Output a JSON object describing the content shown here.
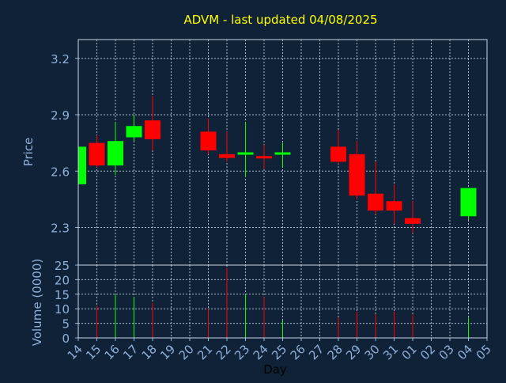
{
  "chart_data": {
    "type": "candlestick",
    "title": "ADVM - last updated 04/08/2025",
    "ylabel": "Price",
    "volume_ylabel": "Volume (0000)",
    "xlabel": "Day",
    "ylim": [
      2.1,
      3.3
    ],
    "volume_ylim": [
      0,
      25
    ],
    "yticks": [
      "2.3",
      "2.6",
      "2.9",
      "3.2"
    ],
    "volume_yticks": [
      "0",
      "5",
      "10",
      "15",
      "20",
      "25"
    ],
    "grid": true,
    "x_labels": [
      "14",
      "15",
      "16",
      "17",
      "18",
      "19",
      "20",
      "21",
      "22",
      "23",
      "24",
      "25",
      "26",
      "27",
      "28",
      "29",
      "30",
      "31",
      "01",
      "02",
      "03",
      "04",
      "05"
    ],
    "colors": {
      "up": "#00ff00",
      "down": "#ff0000",
      "background": "#0f2238",
      "text": "#90b0d8",
      "title": "#ffff00",
      "grid": "#c8d4e4"
    },
    "candles": [
      {
        "day": "14",
        "open": 2.53,
        "close": 2.73,
        "high": 2.73,
        "low": 2.53,
        "volume": 0
      },
      {
        "day": "15",
        "open": 2.75,
        "close": 2.63,
        "high": 2.79,
        "low": 2.62,
        "volume": 11
      },
      {
        "day": "16",
        "open": 2.63,
        "close": 2.76,
        "high": 2.86,
        "low": 2.58,
        "volume": 15
      },
      {
        "day": "17",
        "open": 2.78,
        "close": 2.84,
        "high": 2.9,
        "low": 2.76,
        "volume": 14
      },
      {
        "day": "18",
        "open": 2.87,
        "close": 2.77,
        "high": 3.0,
        "low": 2.71,
        "volume": 12
      },
      {
        "day": "21",
        "open": 2.81,
        "close": 2.71,
        "high": 2.88,
        "low": 2.69,
        "volume": 10
      },
      {
        "day": "22",
        "open": 2.69,
        "close": 2.67,
        "high": 2.81,
        "low": 2.65,
        "volume": 24
      },
      {
        "day": "23",
        "open": 2.69,
        "close": 2.7,
        "high": 2.86,
        "low": 2.57,
        "volume": 15
      },
      {
        "day": "24",
        "open": 2.68,
        "close": 2.67,
        "high": 2.74,
        "low": 2.61,
        "volume": 14
      },
      {
        "day": "25",
        "open": 2.69,
        "close": 2.7,
        "high": 2.75,
        "low": 2.62,
        "volume": 6
      },
      {
        "day": "28",
        "open": 2.73,
        "close": 2.65,
        "high": 2.82,
        "low": 2.64,
        "volume": 7
      },
      {
        "day": "29",
        "open": 2.69,
        "close": 2.47,
        "high": 2.76,
        "low": 2.45,
        "volume": 9
      },
      {
        "day": "30",
        "open": 2.48,
        "close": 2.39,
        "high": 2.65,
        "low": 2.37,
        "volume": 8
      },
      {
        "day": "31",
        "open": 2.44,
        "close": 2.39,
        "high": 2.53,
        "low": 2.32,
        "volume": 9
      },
      {
        "day": "01",
        "open": 2.35,
        "close": 2.32,
        "high": 2.44,
        "low": 2.27,
        "volume": 8
      },
      {
        "day": "04",
        "open": 2.36,
        "close": 2.51,
        "high": 2.51,
        "low": 2.34,
        "volume": 7
      }
    ]
  }
}
